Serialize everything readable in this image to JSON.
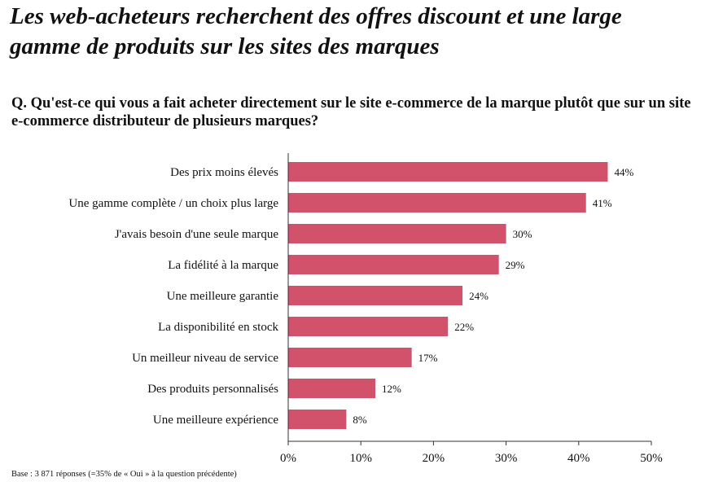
{
  "title": "Les web-acheteurs recherchent des offres discount et une large gamme de produits sur les sites des marques",
  "question": "Q. Qu'est-ce qui vous a fait acheter directement sur le site e-commerce de la marque plutôt que sur un site e-commerce distributeur de plusieurs marques?",
  "footnote": "Base : 3 871 réponses (=35% de « Oui » à la question précédente)",
  "colors": {
    "bar": "#d2516b",
    "axis": "#333333"
  },
  "chart_data": {
    "type": "bar",
    "orientation": "horizontal",
    "categories": [
      "Des prix moins élevés",
      "Une gamme complète / un choix plus large",
      "J'avais besoin d'une seule marque",
      "La fidélité à la marque",
      "Une meilleure garantie",
      "La disponibilité en stock",
      "Un meilleur niveau de service",
      "Des produits personnalisés",
      "Une meilleure expérience"
    ],
    "values": [
      44,
      41,
      30,
      29,
      24,
      22,
      17,
      12,
      8
    ],
    "value_labels": [
      "44%",
      "41%",
      "30%",
      "29%",
      "24%",
      "22%",
      "17%",
      "12%",
      "8%"
    ],
    "xlim": [
      0,
      50
    ],
    "xticks": [
      0,
      10,
      20,
      30,
      40,
      50
    ],
    "xtick_labels": [
      "0%",
      "10%",
      "20%",
      "30%",
      "40%",
      "50%"
    ],
    "grid": false,
    "legend": "none"
  }
}
